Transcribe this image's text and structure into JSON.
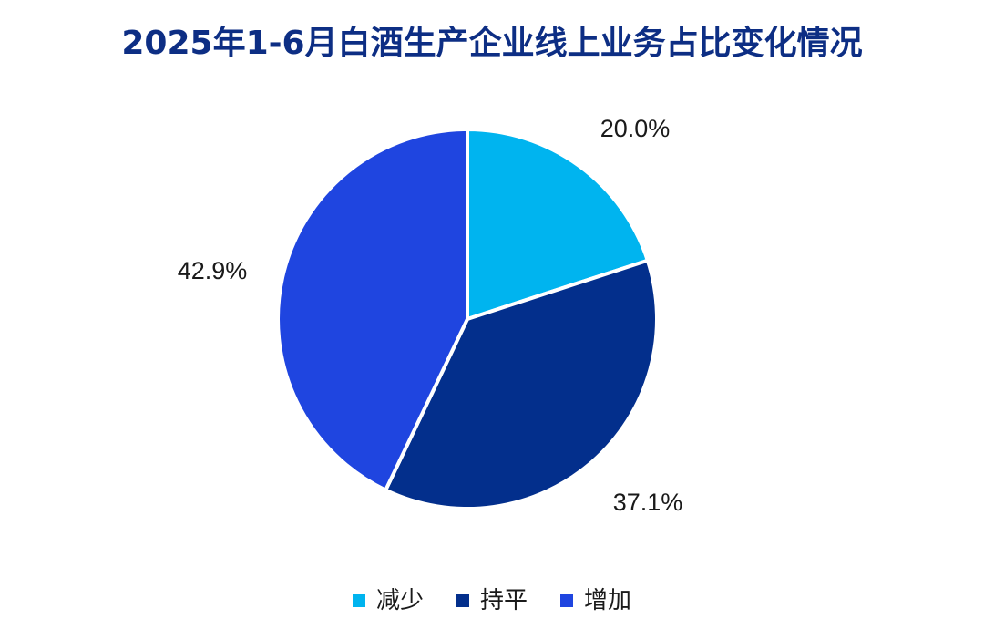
{
  "chart_data": {
    "type": "pie",
    "title": "2025年1-6月白酒生产企业线上业务占比变化情况",
    "title_color": "#0d2e84",
    "slices": [
      {
        "name": "减少",
        "value": 20.0,
        "label": "20.0%",
        "color": "#00b4ef"
      },
      {
        "name": "持平",
        "value": 37.1,
        "label": "37.1%",
        "color": "#032f8c"
      },
      {
        "name": "增加",
        "value": 42.9,
        "label": "42.9%",
        "color": "#1f45e0"
      }
    ],
    "start_angle": "12 o'clock",
    "direction": "clockwise",
    "legend_position": "bottom-center",
    "slice_border_color": "#ffffff"
  }
}
